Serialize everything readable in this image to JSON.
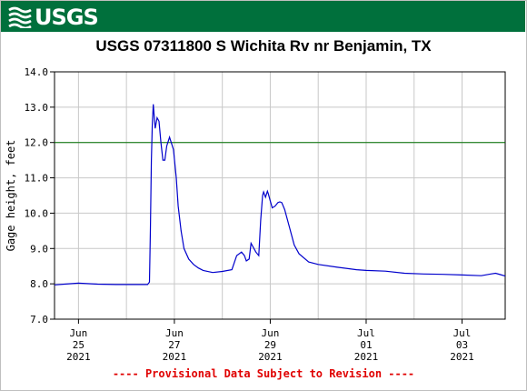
{
  "banner": {
    "logo_text": "USGS",
    "color": "#00703c"
  },
  "chart_data": {
    "type": "line",
    "title": "USGS 07311800 S Wichita Rv nr Benjamin, TX",
    "ylabel": "Gage height, feet",
    "xlabel": "",
    "ylim": [
      7.0,
      14.0
    ],
    "xlim": [
      -0.25,
      4.45
    ],
    "y_ticks": [
      "7.0",
      "8.0",
      "9.0",
      "10.0",
      "11.0",
      "12.0",
      "13.0",
      "14.0"
    ],
    "x_ticks": [
      {
        "x": 0,
        "month": "Jun",
        "day": "25",
        "year": "2021"
      },
      {
        "x": 1,
        "month": "Jun",
        "day": "27",
        "year": "2021"
      },
      {
        "x": 2,
        "month": "Jun",
        "day": "29",
        "year": "2021"
      },
      {
        "x": 3,
        "month": "Jul",
        "day": "01",
        "year": "2021"
      },
      {
        "x": 4,
        "month": "Jul",
        "day": "03",
        "year": "2021"
      }
    ],
    "grid": true,
    "reference_line": {
      "y": 12.0,
      "color": "#007000"
    },
    "line_color": "#0000cc",
    "series": [
      {
        "x": [
          -0.25,
          -0.1,
          0.0,
          0.2,
          0.4,
          0.6,
          0.72,
          0.74,
          0.75,
          0.76,
          0.77,
          0.78,
          0.8,
          0.82,
          0.84,
          0.86,
          0.88,
          0.9,
          0.92,
          0.95,
          0.99,
          1.02,
          1.04,
          1.07,
          1.1,
          1.15,
          1.2,
          1.25,
          1.3,
          1.4,
          1.5,
          1.6,
          1.65,
          1.7,
          1.73,
          1.75,
          1.78,
          1.8,
          1.85,
          1.88,
          1.9,
          1.92,
          1.93,
          1.95,
          1.97,
          1.98,
          2.0,
          2.02,
          2.05,
          2.08,
          2.1,
          2.12,
          2.15,
          2.2,
          2.25,
          2.3,
          2.4,
          2.5,
          2.7,
          2.9,
          3.0,
          3.2,
          3.4,
          3.6,
          3.8,
          4.0,
          4.2,
          4.3,
          4.35,
          4.4,
          4.45
        ],
        "y": [
          7.97,
          8.0,
          8.02,
          7.99,
          7.98,
          7.98,
          7.98,
          8.05,
          9.5,
          11.5,
          12.5,
          13.08,
          12.4,
          12.7,
          12.6,
          12.0,
          11.5,
          11.5,
          11.9,
          12.15,
          11.8,
          11.0,
          10.2,
          9.5,
          9.0,
          8.7,
          8.55,
          8.45,
          8.38,
          8.32,
          8.35,
          8.4,
          8.8,
          8.9,
          8.8,
          8.65,
          8.7,
          9.15,
          8.9,
          8.8,
          9.8,
          10.5,
          10.6,
          10.45,
          10.62,
          10.55,
          10.35,
          10.15,
          10.2,
          10.3,
          10.32,
          10.3,
          10.1,
          9.6,
          9.1,
          8.85,
          8.62,
          8.55,
          8.47,
          8.4,
          8.38,
          8.36,
          8.3,
          8.28,
          8.27,
          8.25,
          8.23,
          8.28,
          8.3,
          8.26,
          8.22
        ]
      }
    ]
  },
  "footnote": "---- Provisional Data Subject to Revision ----"
}
